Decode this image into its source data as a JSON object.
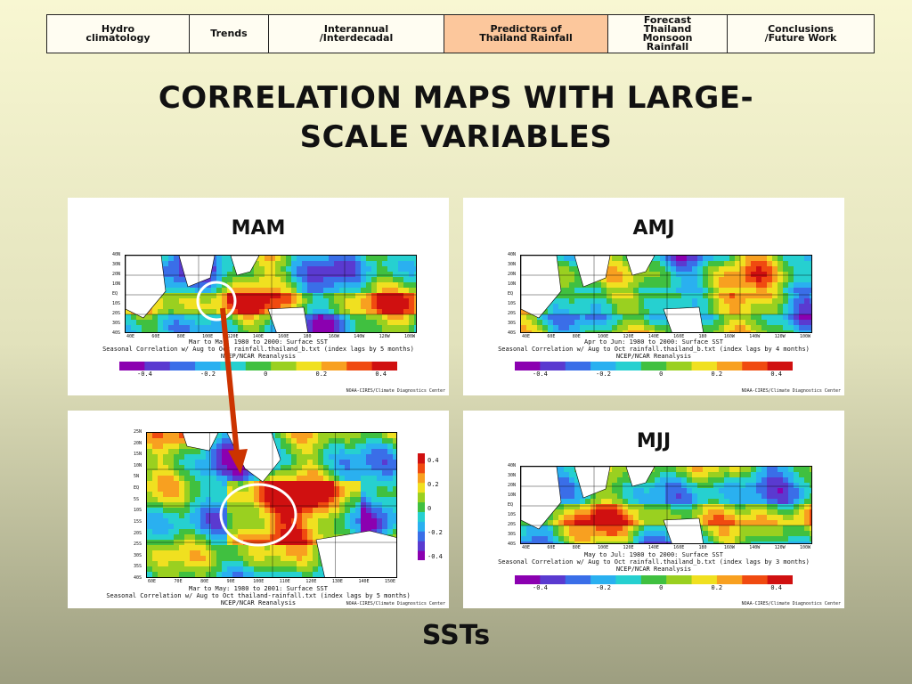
{
  "nav": {
    "tabs": [
      {
        "label": "Hydro\nclimatology",
        "active": false
      },
      {
        "label": "Trends",
        "active": false
      },
      {
        "label": "Interannual\n/Interdecadal",
        "active": false
      },
      {
        "label": "Predictors of\nThailand Rainfall",
        "active": true
      },
      {
        "label": "Forecast\nThailand\nMonsoon\nRainfall",
        "active": false
      },
      {
        "label": "Conclusions\n/Future Work",
        "active": false
      }
    ]
  },
  "slide": {
    "title": "CORRELATION MAPS WITH LARGE-\nSCALE VARIABLES",
    "footer": "SSTs"
  },
  "panels": {
    "mam": {
      "label": "MAM",
      "caption": "Mar to May: 1980 to 2000: Surface SST\nSeasonal Correlation w/ Aug to Oct rainfall.thailand_b.txt (index lags by 5 months)\nNCEP/NCAR Reanalysis",
      "lat_labels": [
        "40N",
        "30N",
        "20N",
        "10N",
        "EQ",
        "10S",
        "20S",
        "30S",
        "40S"
      ],
      "lon_labels": [
        "40E",
        "60E",
        "80E",
        "100E",
        "120E",
        "140E",
        "160E",
        "180",
        "160W",
        "140W",
        "120W",
        "100W"
      ],
      "colorbar_ticks": [
        "-0.4",
        "-0.2",
        "0",
        "0.2",
        "0.4"
      ],
      "credit": "NOAA-CIRES/Climate Diagnostics Center"
    },
    "amj": {
      "label": "AMJ",
      "caption": "Apr to Jun: 1980 to 2000: Surface SST\nSeasonal Correlation w/ Aug to Oct rainfall.thailand_b.txt (index lags by 4 months)\nNCEP/NCAR Reanalysis",
      "lat_labels": [
        "40N",
        "30N",
        "20N",
        "10N",
        "EQ",
        "10S",
        "20S",
        "30S",
        "40S"
      ],
      "lon_labels": [
        "40E",
        "60E",
        "80E",
        "100E",
        "120E",
        "140E",
        "160E",
        "180",
        "160W",
        "140W",
        "120W",
        "100W"
      ],
      "colorbar_ticks": [
        "-0.4",
        "-0.2",
        "0",
        "0.2",
        "0.4"
      ],
      "credit": "NOAA-CIRES/Climate Diagnostics Center"
    },
    "zoom": {
      "caption": "Mar to May: 1980 to 2001: Surface SST\nSeasonal Correlation w/ Aug to Oct thailand-rainfall.txt (index lags by 5 months)\nNCEP/NCAR Reanalysis",
      "lat_labels": [
        "25N",
        "20N",
        "15N",
        "10N",
        "5N",
        "EQ",
        "5S",
        "10S",
        "15S",
        "20S",
        "25S",
        "30S",
        "35S",
        "40S"
      ],
      "lon_labels": [
        "60E",
        "70E",
        "80E",
        "90E",
        "100E",
        "110E",
        "120E",
        "130E",
        "140E",
        "150E"
      ],
      "colorbar_ticks": [
        "0.4",
        "0.2",
        "0",
        "-0.2",
        "-0.4"
      ],
      "credit": "NOAA-CIRES/Climate Diagnostics Center"
    },
    "mjj": {
      "label": "MJJ",
      "caption": "May to Jul: 1980 to 2000: Surface SST\nSeasonal Correlation w/ Aug to Oct rainfall.thailand_b.txt (index lags by 3 months)\nNCEP/NCAR Reanalysis",
      "lat_labels": [
        "40N",
        "30N",
        "20N",
        "10N",
        "EQ",
        "10S",
        "20S",
        "30S",
        "40S"
      ],
      "lon_labels": [
        "40E",
        "60E",
        "80E",
        "100E",
        "120E",
        "140E",
        "160E",
        "180",
        "160W",
        "140W",
        "120W",
        "100W"
      ],
      "colorbar_ticks": [
        "-0.4",
        "-0.2",
        "0",
        "0.2",
        "0.4"
      ],
      "credit": "NOAA-CIRES/Climate Diagnostics Center"
    }
  },
  "colors": {
    "highlight_active_tab": "#fcc79c",
    "arrow": "#cc3300",
    "circle": "#ffffff",
    "scale": [
      "#8b00b0",
      "#5a3ad0",
      "#3a6ee8",
      "#2ab0f0",
      "#26d0d0",
      "#40c040",
      "#9ad020",
      "#f0e020",
      "#f8a020",
      "#f04a10",
      "#d01010"
    ]
  }
}
